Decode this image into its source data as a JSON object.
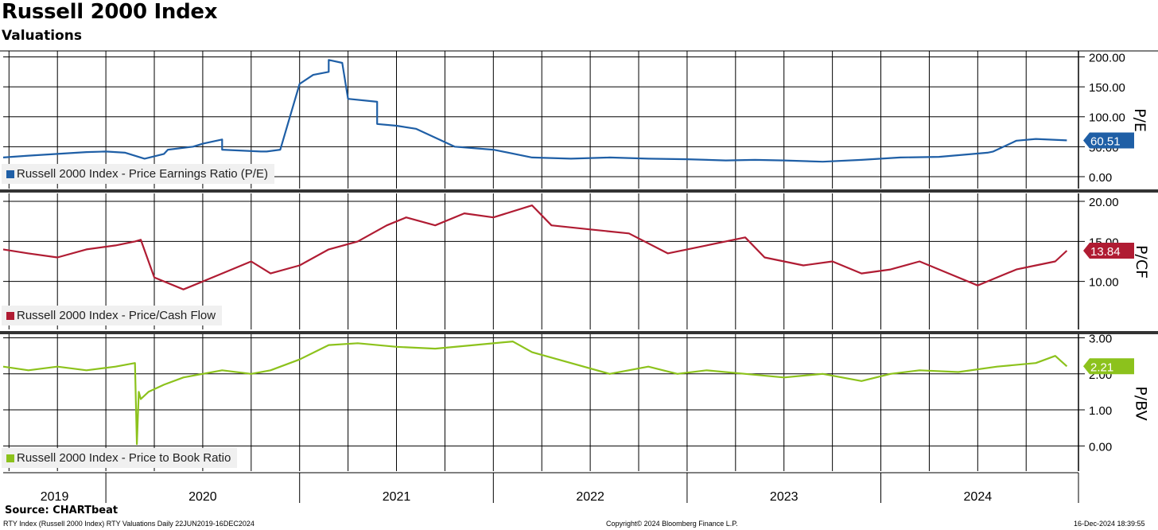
{
  "title": "Russell 2000 Index",
  "subtitle": "Valuations",
  "source": "Source: CHARTbeat",
  "footer": {
    "left": "RTY Index (Russell 2000 Index) RTY Valuations  Daily 22JUN2019-16DEC2024",
    "center": "Copyright© 2024 Bloomberg Finance L.P.",
    "right": "16-Dec-2024 18:39:55"
  },
  "chart_data": [
    {
      "type": "line",
      "panel": "P/E",
      "ylabel": "P/E",
      "ylim": [
        -20,
        210
      ],
      "yticks": [
        0,
        50,
        100,
        150,
        200
      ],
      "ytick_labels": [
        "0.00",
        "50.00",
        "100.00",
        "150.00",
        "200.00"
      ],
      "last_value_label": "60.51",
      "color": "#1f5fa6",
      "series": [
        {
          "name": "Russell 2000 Index - Price Earnings Ratio (P/E)",
          "x": [
            2019.47,
            2019.6,
            2019.75,
            2019.9,
            2020.0,
            2020.1,
            2020.2,
            2020.3,
            2020.32,
            2020.45,
            2020.5,
            2020.6,
            2020.6,
            2020.8,
            2020.83,
            2020.9,
            2021.0,
            2021.07,
            2021.15,
            2021.15,
            2021.22,
            2021.25,
            2021.4,
            2021.4,
            2021.5,
            2021.6,
            2021.8,
            2022.0,
            2022.2,
            2022.4,
            2022.6,
            2022.8,
            2023.0,
            2023.2,
            2023.35,
            2023.5,
            2023.7,
            2023.9,
            2024.1,
            2024.3,
            2024.55,
            2024.58,
            2024.7,
            2024.8,
            2024.96
          ],
          "values": [
            32,
            35,
            38,
            41,
            42,
            40,
            30,
            38,
            45,
            50,
            55,
            62,
            45,
            42,
            42,
            45,
            155,
            170,
            175,
            195,
            190,
            130,
            125,
            88,
            85,
            80,
            50,
            45,
            32,
            30,
            32,
            30,
            29,
            27,
            28,
            27,
            25,
            28,
            32,
            33,
            40,
            42,
            60,
            63,
            60.51
          ]
        }
      ]
    },
    {
      "type": "line",
      "panel": "P/CF",
      "ylabel": "P/CF",
      "ylim": [
        4,
        21
      ],
      "yticks": [
        10,
        15,
        20
      ],
      "ytick_labels": [
        "10.00",
        "15.00",
        "20.00"
      ],
      "last_value_label": "13.84",
      "color": "#b01c33",
      "series": [
        {
          "name": "Russell 2000 Index - Price/Cash Flow",
          "x": [
            2019.47,
            2019.6,
            2019.75,
            2019.9,
            2020.05,
            2020.15,
            2020.18,
            2020.25,
            2020.4,
            2020.6,
            2020.75,
            2020.85,
            2021.0,
            2021.15,
            2021.3,
            2021.45,
            2021.55,
            2021.7,
            2021.85,
            2022.0,
            2022.2,
            2022.3,
            2022.5,
            2022.7,
            2022.9,
            2023.1,
            2023.3,
            2023.4,
            2023.6,
            2023.75,
            2023.9,
            2024.05,
            2024.2,
            2024.35,
            2024.5,
            2024.55,
            2024.7,
            2024.8,
            2024.9,
            2024.96
          ],
          "values": [
            14,
            13.5,
            13,
            14,
            14.5,
            15,
            15.2,
            10.5,
            9,
            11,
            12.5,
            11,
            12,
            14,
            15,
            17,
            18,
            17,
            18.5,
            18,
            19.5,
            17,
            16.5,
            16,
            13.5,
            14.5,
            15.5,
            13,
            12,
            12.5,
            11,
            11.5,
            12.5,
            11,
            9.5,
            10,
            11.5,
            12,
            12.5,
            13.84
          ]
        }
      ]
    },
    {
      "type": "line",
      "panel": "P/BV",
      "ylabel": "P/BV",
      "ylim": [
        -0.7,
        3.1
      ],
      "yticks": [
        0,
        1,
        2,
        3
      ],
      "ytick_labels": [
        "0.00",
        "1.00",
        "2.00",
        "3.00"
      ],
      "last_value_label": "2.21",
      "color": "#8cc21c",
      "series": [
        {
          "name": "Russell 2000 Index - Price to Book Ratio",
          "x": [
            2019.47,
            2019.6,
            2019.75,
            2019.9,
            2020.05,
            2020.15,
            2020.16,
            2020.17,
            2020.18,
            2020.22,
            2020.3,
            2020.4,
            2020.6,
            2020.75,
            2020.85,
            2021.0,
            2021.15,
            2021.3,
            2021.5,
            2021.7,
            2021.9,
            2022.1,
            2022.2,
            2022.4,
            2022.6,
            2022.8,
            2022.95,
            2023.1,
            2023.3,
            2023.5,
            2023.7,
            2023.9,
            2024.05,
            2024.2,
            2024.4,
            2024.6,
            2024.8,
            2024.9,
            2024.96
          ],
          "values": [
            2.2,
            2.1,
            2.2,
            2.1,
            2.2,
            2.3,
            0.05,
            1.5,
            1.3,
            1.5,
            1.7,
            1.9,
            2.1,
            2.0,
            2.1,
            2.4,
            2.8,
            2.85,
            2.75,
            2.7,
            2.8,
            2.9,
            2.6,
            2.3,
            2.0,
            2.2,
            2.0,
            2.1,
            2.0,
            1.9,
            2.0,
            1.8,
            2.0,
            2.1,
            2.05,
            2.2,
            2.3,
            2.5,
            2.21
          ]
        }
      ]
    }
  ],
  "x_axis": {
    "range": [
      2019.47,
      2025.02
    ],
    "year_labels": [
      "2019",
      "2020",
      "2021",
      "2022",
      "2023",
      "2024"
    ]
  }
}
